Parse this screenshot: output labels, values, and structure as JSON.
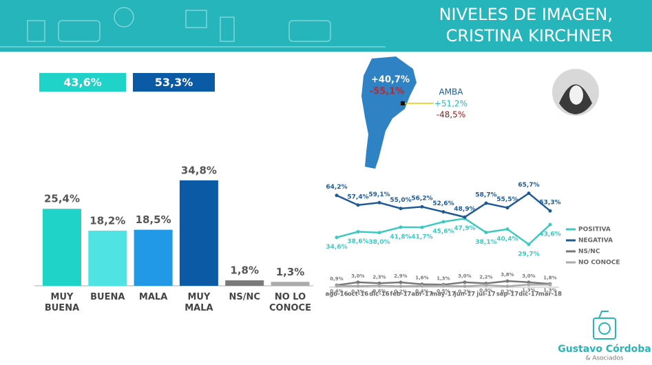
{
  "header": {
    "title_lines": [
      "NIVELES DE IMAGEN,",
      "CRISTINA KIRCHNER"
    ]
  },
  "summary": [
    "43,6%",
    "53,3%"
  ],
  "map": {
    "total_labels": [
      "+40,7%",
      "-55,1%"
    ],
    "region": "AMBA",
    "region_labels": [
      "+51,2%",
      "-48,5%"
    ]
  },
  "logo": {
    "name": "Gustavo Córdoba",
    "subtitle": "& Asociados"
  },
  "chart_data": [
    {
      "type": "bar",
      "categories": [
        "MUY BUENA",
        "BUENA",
        "MALA",
        "MUY MALA",
        "NS/NC",
        "NO LO CONOCE"
      ],
      "values": [
        25.4,
        18.2,
        18.5,
        34.8,
        1.8,
        1.3
      ],
      "value_labels": [
        "25,4%",
        "18,2%",
        "18,5%",
        "34,8%",
        "1,8%",
        "1,3%"
      ],
      "colors": [
        "#1fd3c9",
        "#4fe3e3",
        "#2299e6",
        "#0b5aa6",
        "#7a7a7a",
        "#ababab"
      ]
    },
    {
      "type": "line",
      "categories": [
        "ago-16",
        "oct-16",
        "dic-16",
        "feb-17",
        "abr-17",
        "may-17",
        "jun-17",
        "jul-17",
        "sep-17",
        "dic-17",
        "mar-18"
      ],
      "series": [
        {
          "name": "POSITIVA",
          "color": "#3cc9c2",
          "values": [
            34.6,
            38.6,
            38.0,
            41.8,
            41.7,
            45.6,
            47.9,
            38.1,
            40.4,
            29.7,
            43.6
          ],
          "value_labels": [
            "34,6%",
            "38,6%",
            "38,0%",
            "41,8%",
            "41,7%",
            "45,6%",
            "47,9%",
            "38,1%",
            "40,4%",
            "29,7%",
            "43,6%"
          ]
        },
        {
          "name": "NEGATIVA",
          "color": "#1e5a96",
          "values": [
            64.2,
            57.4,
            59.1,
            55.0,
            56.2,
            52.6,
            48.9,
            58.7,
            55.5,
            65.7,
            53.3
          ],
          "value_labels": [
            "64,2%",
            "57,4%",
            "59,1%",
            "55,0%",
            "56,2%",
            "52,6%",
            "48,9%",
            "58,7%",
            "55,5%",
            "65,7%",
            "53,3%"
          ]
        },
        {
          "name": "NS/NC",
          "color": "#777777",
          "values": [
            0.9,
            3.0,
            2.3,
            2.9,
            1.6,
            1.3,
            3.0,
            2.2,
            3.8,
            3.0,
            1.8
          ],
          "value_labels": [
            "0,9%",
            "3,0%",
            "2,3%",
            "2,9%",
            "1,6%",
            "1,3%",
            "3,0%",
            "2,2%",
            "3,8%",
            "3,0%",
            "1,8%"
          ]
        },
        {
          "name": "NO CONOCE",
          "color": "#aaaaaa",
          "values": [
            0.4,
            0.3,
            0.6,
            0.2,
            0.4,
            0.5,
            0.2,
            0.9,
            0.2,
            1.3,
            1.3
          ],
          "value_labels": [
            "0,4%",
            "0,3%",
            "0,6%",
            "0,2%",
            "0,4%",
            "0,5%",
            "0,2%",
            "0,9%",
            "0,2%",
            "1,3%",
            "1,3%"
          ]
        }
      ]
    }
  ]
}
